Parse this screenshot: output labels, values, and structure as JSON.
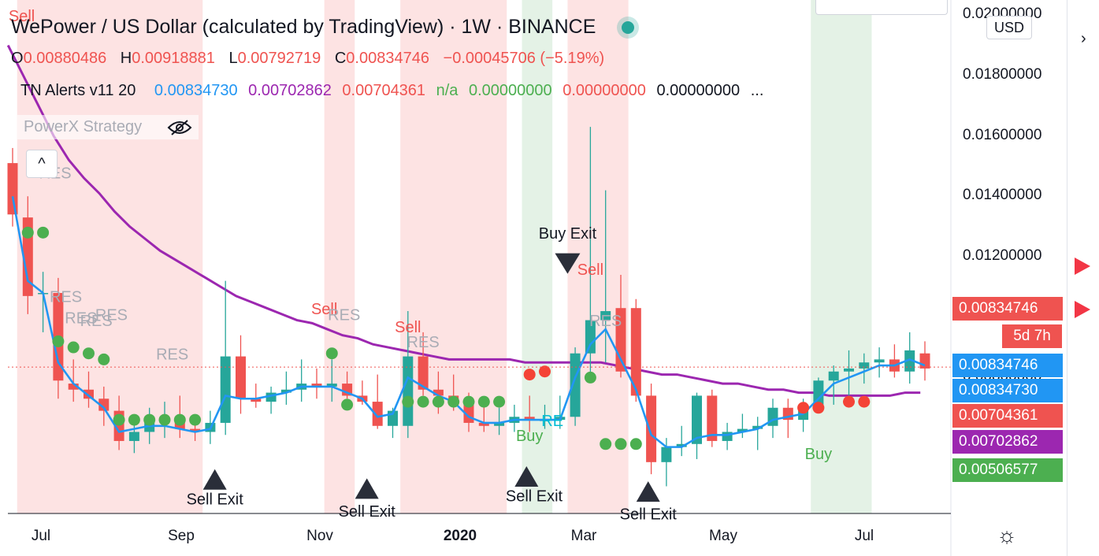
{
  "header": {
    "title": "WePower / US Dollar (calculated by TradingView) · 1W · BINANCE",
    "ohlc": {
      "o_label": "O",
      "o": "0.00880486",
      "h_label": "H",
      "h": "0.00918881",
      "l_label": "L",
      "l": "0.00792719",
      "c_label": "C",
      "c": "0.00834746",
      "change": "−0.00045706 (−5.19%)"
    },
    "indicator": {
      "name": "TN Alerts v11 20",
      "v1": "0.00834730",
      "v2": "0.00702862",
      "v3": "0.00704361",
      "v4": "n/a",
      "v5": "0.00000000",
      "v6": "0.00000000",
      "v7": "0.00000000",
      "more": "..."
    },
    "strategy": "PowerX Strategy",
    "collapse": "^",
    "eye_icon": "eye-off-icon"
  },
  "price_axis": {
    "currency": "USD",
    "labels": [
      "0.02000000",
      "0.01800000",
      "0.01600000",
      "0.01400000",
      "0.01200000",
      "0.01000000",
      "0.00800000"
    ],
    "tags": [
      {
        "text": "0.00834746",
        "color": "#ef5350"
      },
      {
        "text": "0.00834746",
        "color": "#2196f3"
      },
      {
        "text": "0.00834730",
        "color": "#2196f3"
      },
      {
        "text": "0.00704361",
        "color": "#ef5350"
      },
      {
        "text": "0.00702862",
        "color": "#9c27b0"
      },
      {
        "text": "0.00506577",
        "color": "#4caf50"
      }
    ],
    "countdown": "5d 7h"
  },
  "time_axis": {
    "labels": [
      "Jul",
      "Sep",
      "Nov",
      "2020",
      "Mar",
      "May",
      "Jul"
    ]
  },
  "colors": {
    "up": "#26a69a",
    "down": "#ef5350",
    "sma": "#9c27b0",
    "ema": "#2196f3",
    "sell_zone": "#fde3e3",
    "buy_zone": "#e4f2e6"
  },
  "chart_data": {
    "type": "candlestick",
    "title": "WePower / US Dollar (calculated by TradingView) · 1W · BINANCE",
    "ylim": [
      0.0035,
      0.0205
    ],
    "x_ticks": [
      "Jul",
      "Sep",
      "Nov",
      "2020",
      "Mar",
      "May",
      "Jul"
    ],
    "candles": [
      {
        "o": 0.0151,
        "h": 0.0156,
        "l": 0.013,
        "c": 0.0134
      },
      {
        "o": 0.0133,
        "h": 0.014,
        "l": 0.0101,
        "c": 0.0107
      },
      {
        "o": 0.0108,
        "h": 0.0115,
        "l": 0.0095,
        "c": 0.0108
      },
      {
        "o": 0.0108,
        "h": 0.0113,
        "l": 0.0073,
        "c": 0.0079
      },
      {
        "o": 0.0078,
        "h": 0.0086,
        "l": 0.0072,
        "c": 0.0076
      },
      {
        "o": 0.0076,
        "h": 0.0082,
        "l": 0.007,
        "c": 0.0073
      },
      {
        "o": 0.0073,
        "h": 0.0077,
        "l": 0.0064,
        "c": 0.0069
      },
      {
        "o": 0.0069,
        "h": 0.0074,
        "l": 0.0056,
        "c": 0.0059
      },
      {
        "o": 0.0059,
        "h": 0.0067,
        "l": 0.0055,
        "c": 0.0062
      },
      {
        "o": 0.0062,
        "h": 0.007,
        "l": 0.0058,
        "c": 0.0066
      },
      {
        "o": 0.0066,
        "h": 0.0072,
        "l": 0.006,
        "c": 0.0066
      },
      {
        "o": 0.0066,
        "h": 0.0074,
        "l": 0.006,
        "c": 0.0063
      },
      {
        "o": 0.0063,
        "h": 0.0067,
        "l": 0.0059,
        "c": 0.0062
      },
      {
        "o": 0.0062,
        "h": 0.0069,
        "l": 0.0058,
        "c": 0.0065
      },
      {
        "o": 0.0065,
        "h": 0.0112,
        "l": 0.0061,
        "c": 0.0087
      },
      {
        "o": 0.0087,
        "h": 0.0094,
        "l": 0.0068,
        "c": 0.0073
      },
      {
        "o": 0.0073,
        "h": 0.0078,
        "l": 0.007,
        "c": 0.0072
      },
      {
        "o": 0.0072,
        "h": 0.0077,
        "l": 0.0068,
        "c": 0.0075
      },
      {
        "o": 0.0075,
        "h": 0.0082,
        "l": 0.0071,
        "c": 0.0076
      },
      {
        "o": 0.0076,
        "h": 0.0086,
        "l": 0.0072,
        "c": 0.0078
      },
      {
        "o": 0.0078,
        "h": 0.0083,
        "l": 0.0073,
        "c": 0.0077
      },
      {
        "o": 0.0077,
        "h": 0.0086,
        "l": 0.0072,
        "c": 0.0078
      },
      {
        "o": 0.0078,
        "h": 0.0082,
        "l": 0.0073,
        "c": 0.0074
      },
      {
        "o": 0.0074,
        "h": 0.0079,
        "l": 0.0071,
        "c": 0.0072
      },
      {
        "o": 0.0072,
        "h": 0.0081,
        "l": 0.0063,
        "c": 0.0064
      },
      {
        "o": 0.0064,
        "h": 0.007,
        "l": 0.006,
        "c": 0.0069
      },
      {
        "o": 0.0064,
        "h": 0.0102,
        "l": 0.006,
        "c": 0.0087
      },
      {
        "o": 0.0087,
        "h": 0.0095,
        "l": 0.0074,
        "c": 0.0076
      },
      {
        "o": 0.0076,
        "h": 0.0082,
        "l": 0.0068,
        "c": 0.0074
      },
      {
        "o": 0.0074,
        "h": 0.0081,
        "l": 0.0069,
        "c": 0.0071
      },
      {
        "o": 0.0071,
        "h": 0.0075,
        "l": 0.0062,
        "c": 0.0065
      },
      {
        "o": 0.0065,
        "h": 0.0072,
        "l": 0.0062,
        "c": 0.0064
      },
      {
        "o": 0.0064,
        "h": 0.007,
        "l": 0.0061,
        "c": 0.0065
      },
      {
        "o": 0.0065,
        "h": 0.0071,
        "l": 0.0062,
        "c": 0.0067
      },
      {
        "o": 0.0067,
        "h": 0.0074,
        "l": 0.0062,
        "c": 0.0066
      },
      {
        "o": 0.0066,
        "h": 0.0071,
        "l": 0.0063,
        "c": 0.0066
      },
      {
        "o": 0.0066,
        "h": 0.0074,
        "l": 0.0063,
        "c": 0.0067
      },
      {
        "o": 0.0067,
        "h": 0.009,
        "l": 0.0064,
        "c": 0.0088
      },
      {
        "o": 0.0088,
        "h": 0.0163,
        "l": 0.008,
        "c": 0.0099
      },
      {
        "o": 0.0099,
        "h": 0.0142,
        "l": 0.0085,
        "c": 0.0102
      },
      {
        "o": 0.0103,
        "h": 0.0114,
        "l": 0.008,
        "c": 0.0082
      },
      {
        "o": 0.0103,
        "h": 0.0106,
        "l": 0.0072,
        "c": 0.0074
      },
      {
        "o": 0.0074,
        "h": 0.0078,
        "l": 0.0048,
        "c": 0.0052
      },
      {
        "o": 0.0052,
        "h": 0.006,
        "l": 0.0044,
        "c": 0.0057
      },
      {
        "o": 0.0057,
        "h": 0.0064,
        "l": 0.0054,
        "c": 0.0058
      },
      {
        "o": 0.0058,
        "h": 0.0075,
        "l": 0.0053,
        "c": 0.0074
      },
      {
        "o": 0.0074,
        "h": 0.0076,
        "l": 0.0057,
        "c": 0.0059
      },
      {
        "o": 0.0059,
        "h": 0.0065,
        "l": 0.0056,
        "c": 0.0062
      },
      {
        "o": 0.0062,
        "h": 0.0068,
        "l": 0.006,
        "c": 0.0063
      },
      {
        "o": 0.0063,
        "h": 0.0067,
        "l": 0.0056,
        "c": 0.0064
      },
      {
        "o": 0.0064,
        "h": 0.0073,
        "l": 0.006,
        "c": 0.007
      },
      {
        "o": 0.007,
        "h": 0.0073,
        "l": 0.006,
        "c": 0.0066
      },
      {
        "o": 0.0066,
        "h": 0.0073,
        "l": 0.0062,
        "c": 0.0071
      },
      {
        "o": 0.0071,
        "h": 0.008,
        "l": 0.0069,
        "c": 0.0079
      },
      {
        "o": 0.0079,
        "h": 0.0084,
        "l": 0.0071,
        "c": 0.0082
      },
      {
        "o": 0.0082,
        "h": 0.0089,
        "l": 0.0074,
        "c": 0.0083
      },
      {
        "o": 0.0083,
        "h": 0.0088,
        "l": 0.0078,
        "c": 0.0085
      },
      {
        "o": 0.0085,
        "h": 0.009,
        "l": 0.008,
        "c": 0.0086
      },
      {
        "o": 0.0086,
        "h": 0.0091,
        "l": 0.008,
        "c": 0.0082
      },
      {
        "o": 0.0082,
        "h": 0.0095,
        "l": 0.0078,
        "c": 0.0089
      },
      {
        "o": 0.0088,
        "h": 0.0092,
        "l": 0.0079,
        "c": 0.0083
      }
    ],
    "sma": [
      0.019,
      0.018,
      0.017,
      0.016,
      0.0152,
      0.0146,
      0.0141,
      0.0135,
      0.013,
      0.0126,
      0.0122,
      0.0119,
      0.0116,
      0.0113,
      0.011,
      0.0107,
      0.0105,
      0.0103,
      0.0101,
      0.0099,
      0.0098,
      0.0096,
      0.0094,
      0.0093,
      0.0091,
      0.009,
      0.0089,
      0.0088,
      0.0087,
      0.0086,
      0.0086,
      0.0086,
      0.0086,
      0.0086,
      0.0085,
      0.0085,
      0.0085,
      0.0085,
      0.0085,
      0.0085,
      0.0084,
      0.0083,
      0.0082,
      0.0081,
      0.0081,
      0.008,
      0.0079,
      0.0078,
      0.0078,
      0.0077,
      0.0076,
      0.0076,
      0.0075,
      0.0075,
      0.0074,
      0.0074,
      0.0074,
      0.0074,
      0.0074,
      0.0075,
      0.0075
    ],
    "ema": [
      0.014,
      0.0112,
      0.0108,
      0.0085,
      0.0078,
      0.0074,
      0.007,
      0.0062,
      0.0063,
      0.0064,
      0.0064,
      0.0063,
      0.0062,
      0.0063,
      0.0074,
      0.0073,
      0.0073,
      0.0074,
      0.0075,
      0.0077,
      0.0077,
      0.0077,
      0.0075,
      0.0073,
      0.0067,
      0.0068,
      0.008,
      0.0077,
      0.0074,
      0.0072,
      0.0067,
      0.0065,
      0.0065,
      0.0066,
      0.0066,
      0.0066,
      0.0066,
      0.008,
      0.0091,
      0.0096,
      0.0086,
      0.0076,
      0.0061,
      0.0057,
      0.0057,
      0.006,
      0.0061,
      0.0061,
      0.0062,
      0.0063,
      0.0066,
      0.0067,
      0.0068,
      0.0073,
      0.0078,
      0.008,
      0.0082,
      0.0084,
      0.0084,
      0.0086,
      0.0084
    ],
    "zones": [
      {
        "type": "sell",
        "from": 0.3,
        "to": 12.5
      },
      {
        "type": "sell",
        "from": 20.5,
        "to": 22.5
      },
      {
        "type": "sell",
        "from": 25.5,
        "to": 32.5
      },
      {
        "type": "buy",
        "from": 33.5,
        "to": 35.5
      },
      {
        "type": "sell",
        "from": 36.5,
        "to": 40.5
      },
      {
        "type": "buy",
        "from": 52.5,
        "to": 56.5
      }
    ],
    "green_dots": [
      {
        "i": 1,
        "v": 0.0128
      },
      {
        "i": 2,
        "v": 0.0128
      },
      {
        "i": 3,
        "v": 0.0092
      },
      {
        "i": 4,
        "v": 0.009
      },
      {
        "i": 5,
        "v": 0.0088
      },
      {
        "i": 6,
        "v": 0.0086
      },
      {
        "i": 7,
        "v": 0.0066
      },
      {
        "i": 8,
        "v": 0.0066
      },
      {
        "i": 9,
        "v": 0.0066
      },
      {
        "i": 10,
        "v": 0.0066
      },
      {
        "i": 11,
        "v": 0.0066
      },
      {
        "i": 12,
        "v": 0.0066
      },
      {
        "i": 21,
        "v": 0.0088
      },
      {
        "i": 22,
        "v": 0.0071
      },
      {
        "i": 26,
        "v": 0.0072
      },
      {
        "i": 27,
        "v": 0.0072
      },
      {
        "i": 28,
        "v": 0.0072
      },
      {
        "i": 29,
        "v": 0.0072
      },
      {
        "i": 30,
        "v": 0.0072
      },
      {
        "i": 31,
        "v": 0.0072
      },
      {
        "i": 32,
        "v": 0.0072
      },
      {
        "i": 38,
        "v": 0.008
      },
      {
        "i": 39,
        "v": 0.0058
      },
      {
        "i": 40,
        "v": 0.0058
      },
      {
        "i": 41,
        "v": 0.0058
      }
    ],
    "red_dots": [
      {
        "i": 34,
        "v": 0.0081
      },
      {
        "i": 35,
        "v": 0.0082
      },
      {
        "i": 52,
        "v": 0.007
      },
      {
        "i": 53,
        "v": 0.007
      },
      {
        "i": 55,
        "v": 0.0072
      },
      {
        "i": 56,
        "v": 0.0072
      }
    ],
    "annotations": [
      {
        "text": "Sell",
        "i": 0.6,
        "v": 0.0198,
        "color": "#ef5350"
      },
      {
        "text": "RES",
        "i": 2.8,
        "v": 0.0146,
        "color": "#a9acb5"
      },
      {
        "text": "RES",
        "i": 3.5,
        "v": 0.0105,
        "color": "#a9acb5"
      },
      {
        "text": "RES",
        "i": 4.5,
        "v": 0.0098,
        "color": "#a9acb5"
      },
      {
        "text": "RES",
        "i": 5.5,
        "v": 0.0097,
        "color": "#a9acb5"
      },
      {
        "text": "RES",
        "i": 6.5,
        "v": 0.0099,
        "color": "#a9acb5"
      },
      {
        "text": "RES",
        "i": 10.5,
        "v": 0.0086,
        "color": "#a9acb5"
      },
      {
        "text": "Sell",
        "i": 20.5,
        "v": 0.0101,
        "color": "#ef5350"
      },
      {
        "text": "RES",
        "i": 21.8,
        "v": 0.0099,
        "color": "#a9acb5"
      },
      {
        "text": "Sell",
        "i": 26.0,
        "v": 0.0095,
        "color": "#ef5350"
      },
      {
        "text": "RES",
        "i": 27.0,
        "v": 0.009,
        "color": "#a9acb5"
      },
      {
        "text": "Buy",
        "i": 34.0,
        "v": 0.0059,
        "color": "#4caf50"
      },
      {
        "text": "RE",
        "i": 35.5,
        "v": 0.0064,
        "color": "#00bcd4"
      },
      {
        "text": "Buy Exit",
        "i": 36.5,
        "v": 0.0126,
        "color": "#131722"
      },
      {
        "text": "Sell",
        "i": 38.0,
        "v": 0.0114,
        "color": "#ef5350"
      },
      {
        "text": "RES",
        "i": 39.0,
        "v": 0.0097,
        "color": "#a9acb5"
      },
      {
        "text": "Buy",
        "i": 53.0,
        "v": 0.0053,
        "color": "#4caf50"
      },
      {
        "text": "Sell Exit",
        "i": 13.3,
        "v": 0.0038,
        "color": "#131722"
      },
      {
        "text": "Sell Exit",
        "i": 23.3,
        "v": 0.0034,
        "color": "#131722"
      },
      {
        "text": "Sell Exit",
        "i": 34.3,
        "v": 0.0039,
        "color": "#131722"
      },
      {
        "text": "Sell Exit",
        "i": 41.8,
        "v": 0.0033,
        "color": "#131722"
      }
    ],
    "up_triangles": [
      {
        "i": 13.3,
        "v": 0.0046
      },
      {
        "i": 23.3,
        "v": 0.0043
      },
      {
        "i": 33.8,
        "v": 0.0047
      },
      {
        "i": 41.8,
        "v": 0.0042
      }
    ],
    "down_triangles": [
      {
        "i": 36.5,
        "v": 0.0118
      }
    ],
    "last_price": 0.00834746
  }
}
